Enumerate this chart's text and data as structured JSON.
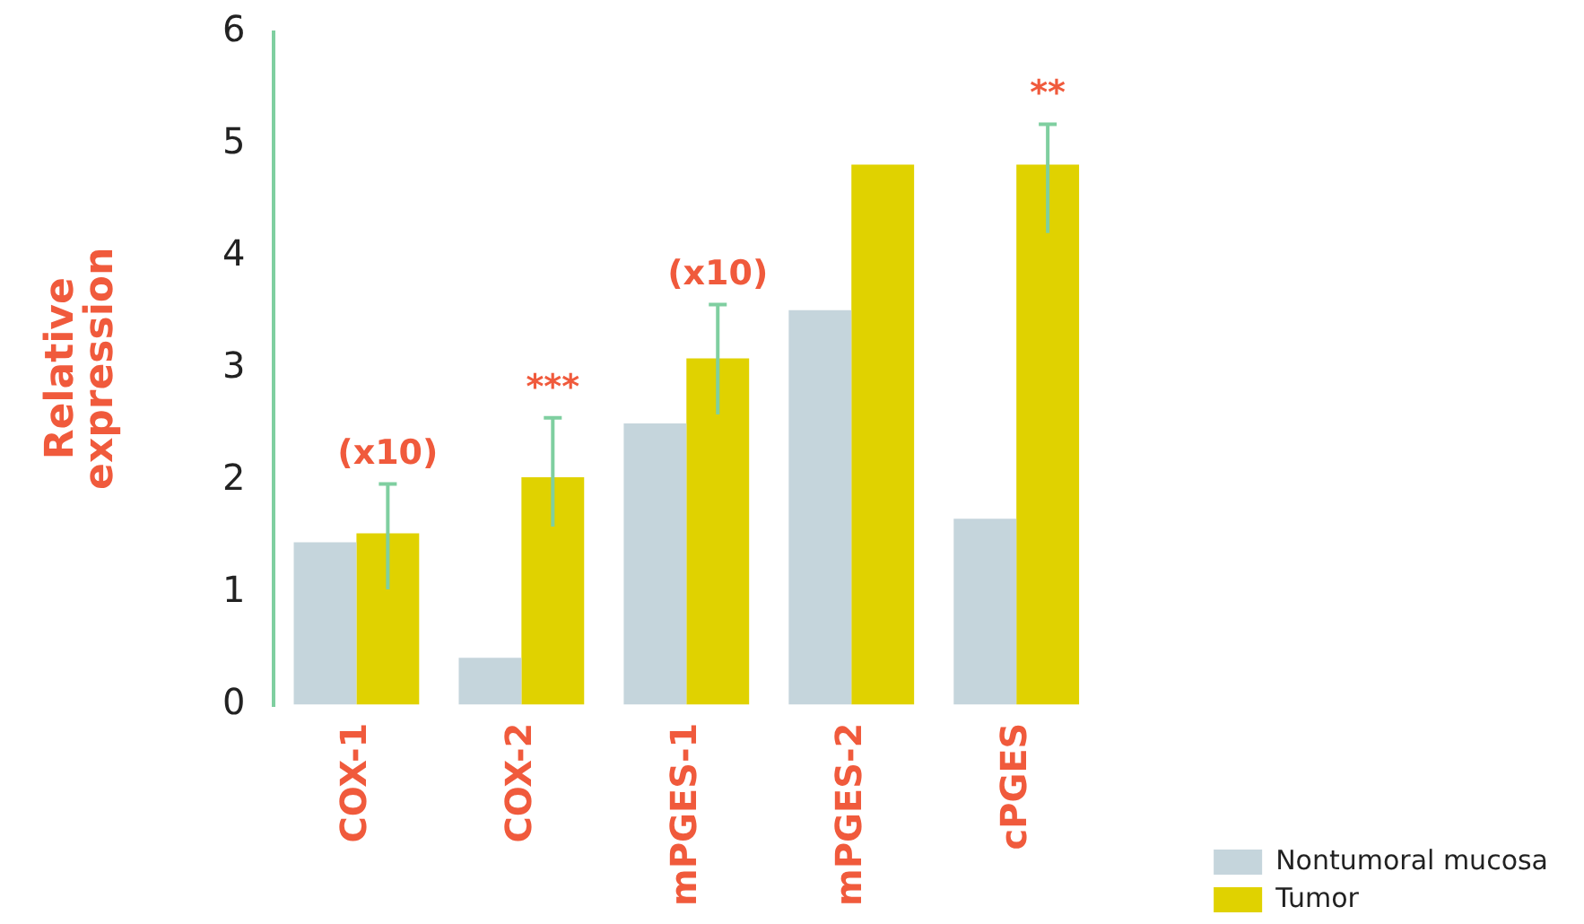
{
  "chart_data": {
    "type": "bar",
    "ylabel": "Relative expression",
    "categories": [
      "COX-1",
      "COX-2",
      "mPGES-1",
      "mPGES-2",
      "cPGES"
    ],
    "series": [
      {
        "name": "Nontumoral mucosa",
        "color": "#c5d5dc",
        "values": [
          1.45,
          0.42,
          2.51,
          3.52,
          1.66
        ]
      },
      {
        "name": "Tumor",
        "color": "#e0d200",
        "values": [
          1.53,
          2.03,
          3.09,
          4.82,
          4.82
        ],
        "errors": [
          [
            1.03,
            1.97
          ],
          [
            1.59,
            2.56
          ],
          [
            2.59,
            3.57
          ],
          null,
          [
            4.21,
            5.18
          ]
        ]
      }
    ],
    "ylim": [
      0,
      6
    ],
    "yticks": [
      0,
      1,
      2,
      3,
      4,
      5,
      6
    ],
    "grid": false,
    "legend": "bottom right",
    "annotations": [
      "(x10)",
      "***",
      "(x10)",
      "**"
    ]
  }
}
